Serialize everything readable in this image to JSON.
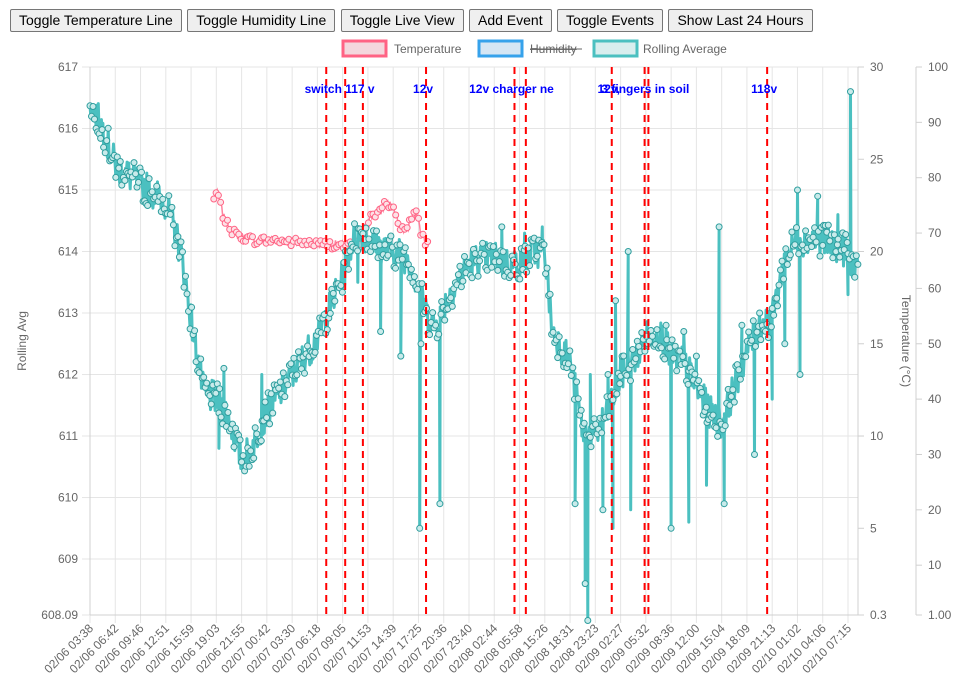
{
  "toolbar": {
    "buttons": [
      {
        "id": "toggle-temperature",
        "label": "Toggle Temperature Line"
      },
      {
        "id": "toggle-humidity",
        "label": "Toggle Humidity Line"
      },
      {
        "id": "toggle-live",
        "label": "Toggle Live View"
      },
      {
        "id": "add-event",
        "label": "Add Event"
      },
      {
        "id": "toggle-events",
        "label": "Toggle Events"
      },
      {
        "id": "show-last-24",
        "label": "Show Last 24 Hours"
      }
    ]
  },
  "colors": {
    "temperature": "#ff6384",
    "humidity": "#36a2eb",
    "rolling": "#4bc0c0",
    "event_line": "#ff0000",
    "event_label": "#0000ff",
    "grid": "#e5e5e5",
    "tick_text": "#666666"
  },
  "chart_data": {
    "type": "line",
    "legend": {
      "position": "top",
      "items": [
        {
          "label": "Temperature",
          "series": "temperature",
          "hidden": false
        },
        {
          "label": "Humidity",
          "series": "humidity",
          "hidden": true
        },
        {
          "label": "Rolling Average",
          "series": "rolling",
          "hidden": false
        }
      ]
    },
    "x_tick_labels": [
      "02/06 03:38",
      "02/06 06:42",
      "02/06 09:46",
      "02/06 12:51",
      "02/06 15:59",
      "02/06 19:03",
      "02/06 21:55",
      "02/07 00:42",
      "02/07 03:30",
      "02/07 06:18",
      "02/07 09:05",
      "02/07 11:53",
      "02/07 14:39",
      "02/07 17:25",
      "02/07 20:36",
      "02/07 23:40",
      "02/08 02:44",
      "02/08 05:58",
      "02/08 15:26",
      "02/08 18:31",
      "02/08 23:23",
      "02/09 02:27",
      "02/09 05:32",
      "02/09 08:36",
      "02/09 12:00",
      "02/09 15:04",
      "02/09 18:09",
      "02/09 21:13",
      "02/10 01:02",
      "02/10 04:06",
      "02/10 07:15"
    ],
    "axes": {
      "y_left": {
        "label": "Rolling Avg",
        "min": 608.09,
        "max": 617,
        "ticks": [
          608.09,
          609,
          610,
          611,
          612,
          613,
          614,
          615,
          616,
          617
        ]
      },
      "y_right_temperature": {
        "label": "Temperature (°C)",
        "min": 0.3,
        "max": 30,
        "ticks": [
          0.3,
          5,
          10,
          15,
          20,
          25,
          30
        ]
      },
      "y_right_humidity": {
        "label": "",
        "min": 1.0,
        "max": 100,
        "ticks": [
          "1.00",
          10,
          20,
          30,
          40,
          50,
          60,
          70,
          80,
          90,
          100
        ]
      }
    },
    "series": [
      {
        "name": "Rolling Average",
        "key": "rolling",
        "axis": "y_left",
        "anchors": [
          [
            0,
            616.4
          ],
          [
            0.5,
            616.0
          ],
          [
            1,
            615.4
          ],
          [
            2,
            615.1
          ],
          [
            3,
            614.8
          ],
          [
            3.6,
            614.0
          ],
          [
            4,
            612.9
          ],
          [
            4.5,
            611.7
          ],
          [
            5,
            611.6
          ],
          [
            5.5,
            611.3
          ],
          [
            6,
            610.6
          ],
          [
            6.4,
            610.8
          ],
          [
            7,
            611.4
          ],
          [
            8,
            612.0
          ],
          [
            9,
            612.6
          ],
          [
            9.6,
            613.2
          ],
          [
            10,
            613.6
          ],
          [
            10.4,
            614.2
          ],
          [
            10.8,
            614.3
          ],
          [
            11.3,
            614.1
          ],
          [
            12,
            614.0
          ],
          [
            12.6,
            613.9
          ],
          [
            13,
            613.4
          ],
          [
            13.4,
            612.9
          ],
          [
            13.7,
            612.8
          ],
          [
            14,
            613.1
          ],
          [
            14.5,
            613.5
          ],
          [
            15,
            613.8
          ],
          [
            15.5,
            613.9
          ],
          [
            16,
            613.9
          ],
          [
            16.5,
            613.8
          ],
          [
            17,
            613.8
          ],
          [
            17.6,
            614.0
          ],
          [
            18,
            614.0
          ],
          [
            18.3,
            612.7
          ],
          [
            19,
            612.2
          ],
          [
            19.5,
            611.1
          ],
          [
            20,
            611.0
          ],
          [
            20.5,
            611.4
          ],
          [
            21,
            612.0
          ],
          [
            21.5,
            612.2
          ],
          [
            22,
            612.6
          ],
          [
            22.5,
            612.7
          ],
          [
            23,
            612.3
          ],
          [
            23.5,
            612.2
          ],
          [
            24,
            611.8
          ],
          [
            24.5,
            611.4
          ],
          [
            25,
            611.2
          ],
          [
            25.5,
            611.8
          ],
          [
            26,
            612.4
          ],
          [
            26.5,
            612.8
          ],
          [
            27,
            612.9
          ],
          [
            27.5,
            613.9
          ],
          [
            28,
            614.2
          ],
          [
            28.5,
            614.2
          ],
          [
            29,
            614.2
          ],
          [
            29.5,
            614.1
          ],
          [
            30,
            614.0
          ],
          [
            30.4,
            613.6
          ]
        ],
        "spikes": [
          [
            5.3,
            612.1
          ],
          [
            5.1,
            610.8
          ],
          [
            6.8,
            612.0
          ],
          [
            10.6,
            613.5
          ],
          [
            11.5,
            612.7
          ],
          [
            12.3,
            612.3
          ],
          [
            13.05,
            609.5
          ],
          [
            13.1,
            612.5
          ],
          [
            13.85,
            609.9
          ],
          [
            13.9,
            613.0
          ],
          [
            16.3,
            614.4
          ],
          [
            17.2,
            614.3
          ],
          [
            17.9,
            614.4
          ],
          [
            19.2,
            609.9
          ],
          [
            19.6,
            608.6
          ],
          [
            19.7,
            608.0
          ],
          [
            19.8,
            612.0
          ],
          [
            20.3,
            609.8
          ],
          [
            20.5,
            612.0
          ],
          [
            20.7,
            609.5
          ],
          [
            20.8,
            613.2
          ],
          [
            21.0,
            612.3
          ],
          [
            21.3,
            614.0
          ],
          [
            21.4,
            609.8
          ],
          [
            22.8,
            612.8
          ],
          [
            23.0,
            609.5
          ],
          [
            23.5,
            612.7
          ],
          [
            23.7,
            609.6
          ],
          [
            24.0,
            612.3
          ],
          [
            24.4,
            610.2
          ],
          [
            24.9,
            614.4
          ],
          [
            25.1,
            609.9
          ],
          [
            25.8,
            612.8
          ],
          [
            26.3,
            610.7
          ],
          [
            26.5,
            613.0
          ],
          [
            27.0,
            611.6
          ],
          [
            27.2,
            613.4
          ],
          [
            27.5,
            612.5
          ],
          [
            28.0,
            615.0
          ],
          [
            28.1,
            612.0
          ],
          [
            28.8,
            614.9
          ],
          [
            29.0,
            614.1
          ],
          [
            29.6,
            614.6
          ],
          [
            30.0,
            613.3
          ],
          [
            30.1,
            616.6
          ]
        ]
      },
      {
        "name": "Temperature",
        "key": "temperature",
        "axis": "y_right_temperature",
        "anchors": [
          [
            4.9,
            22.8
          ],
          [
            5.0,
            23.2
          ],
          [
            5.1,
            22.9
          ],
          [
            5.2,
            22.3
          ],
          [
            5.3,
            21.8
          ],
          [
            5.5,
            21.3
          ],
          [
            5.7,
            21.0
          ],
          [
            6.0,
            20.8
          ],
          [
            6.5,
            20.6
          ],
          [
            7.0,
            20.6
          ],
          [
            7.5,
            20.6
          ],
          [
            8.0,
            20.5
          ],
          [
            8.5,
            20.5
          ],
          [
            9.0,
            20.4
          ],
          [
            9.5,
            20.4
          ],
          [
            10.0,
            20.3
          ],
          [
            10.5,
            20.3
          ],
          [
            10.7,
            20.5
          ],
          [
            11.0,
            21.7
          ],
          [
            11.2,
            22.0
          ],
          [
            11.5,
            22.1
          ],
          [
            11.7,
            22.7
          ],
          [
            12.0,
            22.4
          ],
          [
            12.2,
            21.5
          ],
          [
            12.5,
            21.1
          ],
          [
            12.8,
            22.0
          ],
          [
            13.0,
            22.0
          ],
          [
            13.1,
            21.0
          ],
          [
            13.3,
            20.5
          ],
          [
            13.4,
            20.3
          ]
        ]
      }
    ],
    "events": [
      {
        "x": 9.35,
        "label": "switch"
      },
      {
        "x": 10.1,
        "label": ""
      },
      {
        "x": 10.8,
        "label": "117 v"
      },
      {
        "x": 13.3,
        "label": "12v"
      },
      {
        "x": 16.8,
        "label": "12v charger ne"
      },
      {
        "x": 17.25,
        "label": ""
      },
      {
        "x": 20.65,
        "label": "12v,"
      },
      {
        "x": 21.95,
        "label": ""
      },
      {
        "x": 22.1,
        "label": "3 fingers in soil"
      },
      {
        "x": 26.8,
        "label": "118v"
      }
    ]
  }
}
